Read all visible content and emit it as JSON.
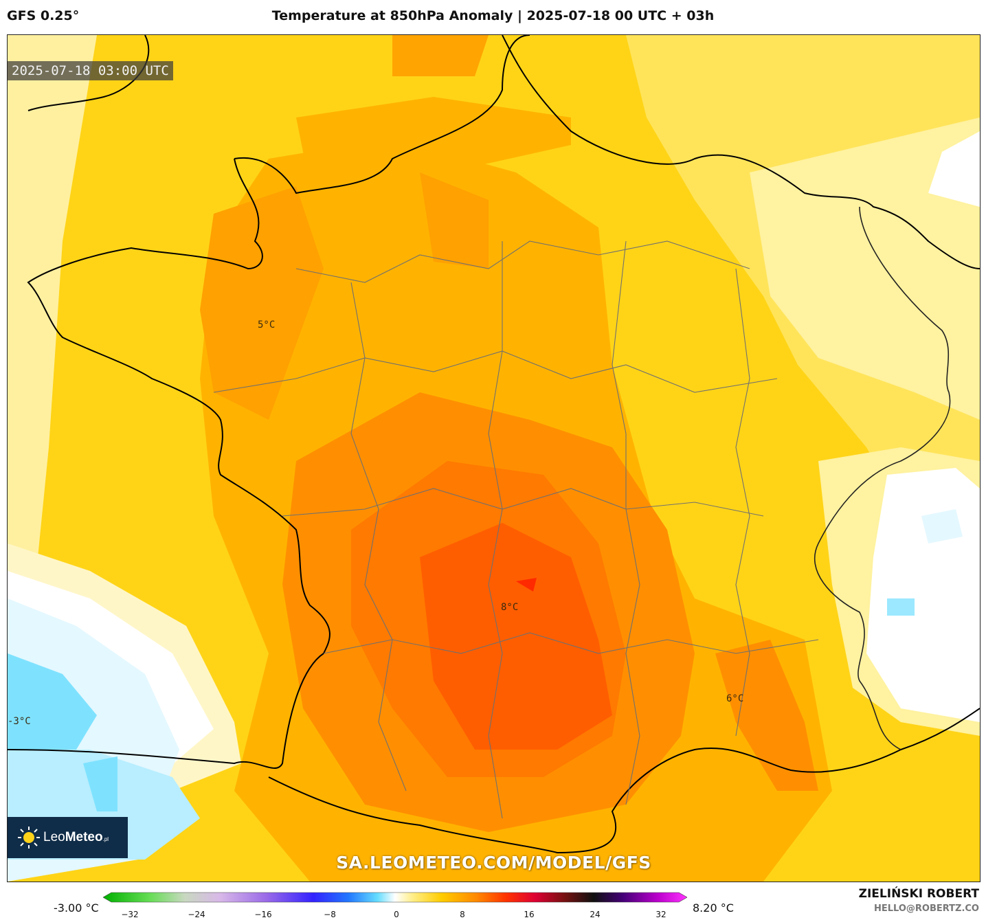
{
  "header": {
    "model": "GFS 0.25°",
    "title": "Temperature at 850hPa Anomaly | 2025-07-18 00 UTC + 03h"
  },
  "map": {
    "timestamp": "2025-07-18 03:00 UTC",
    "watermark": "SA.LEOMETEO.COM/MODEL/GFS",
    "region": "France",
    "contour_labels": [
      {
        "text": "5°C"
      },
      {
        "text": "8°C"
      },
      {
        "text": "6°C"
      },
      {
        "text": "-3°C"
      }
    ]
  },
  "logo": {
    "icon": "sun-icon",
    "name_light": "Leo",
    "name_bold": "Meteo",
    "suffix": ".pl"
  },
  "colorbar": {
    "min_label": "-3.00 °C",
    "max_label": "8.20 °C",
    "ticks": [
      "−32",
      "−24",
      "−16",
      "−8",
      "0",
      "8",
      "16",
      "24",
      "32"
    ]
  },
  "footer": {
    "author": "ZIELIŃSKI ROBERT",
    "email": "HELLO@ROBERTZ.CO"
  }
}
